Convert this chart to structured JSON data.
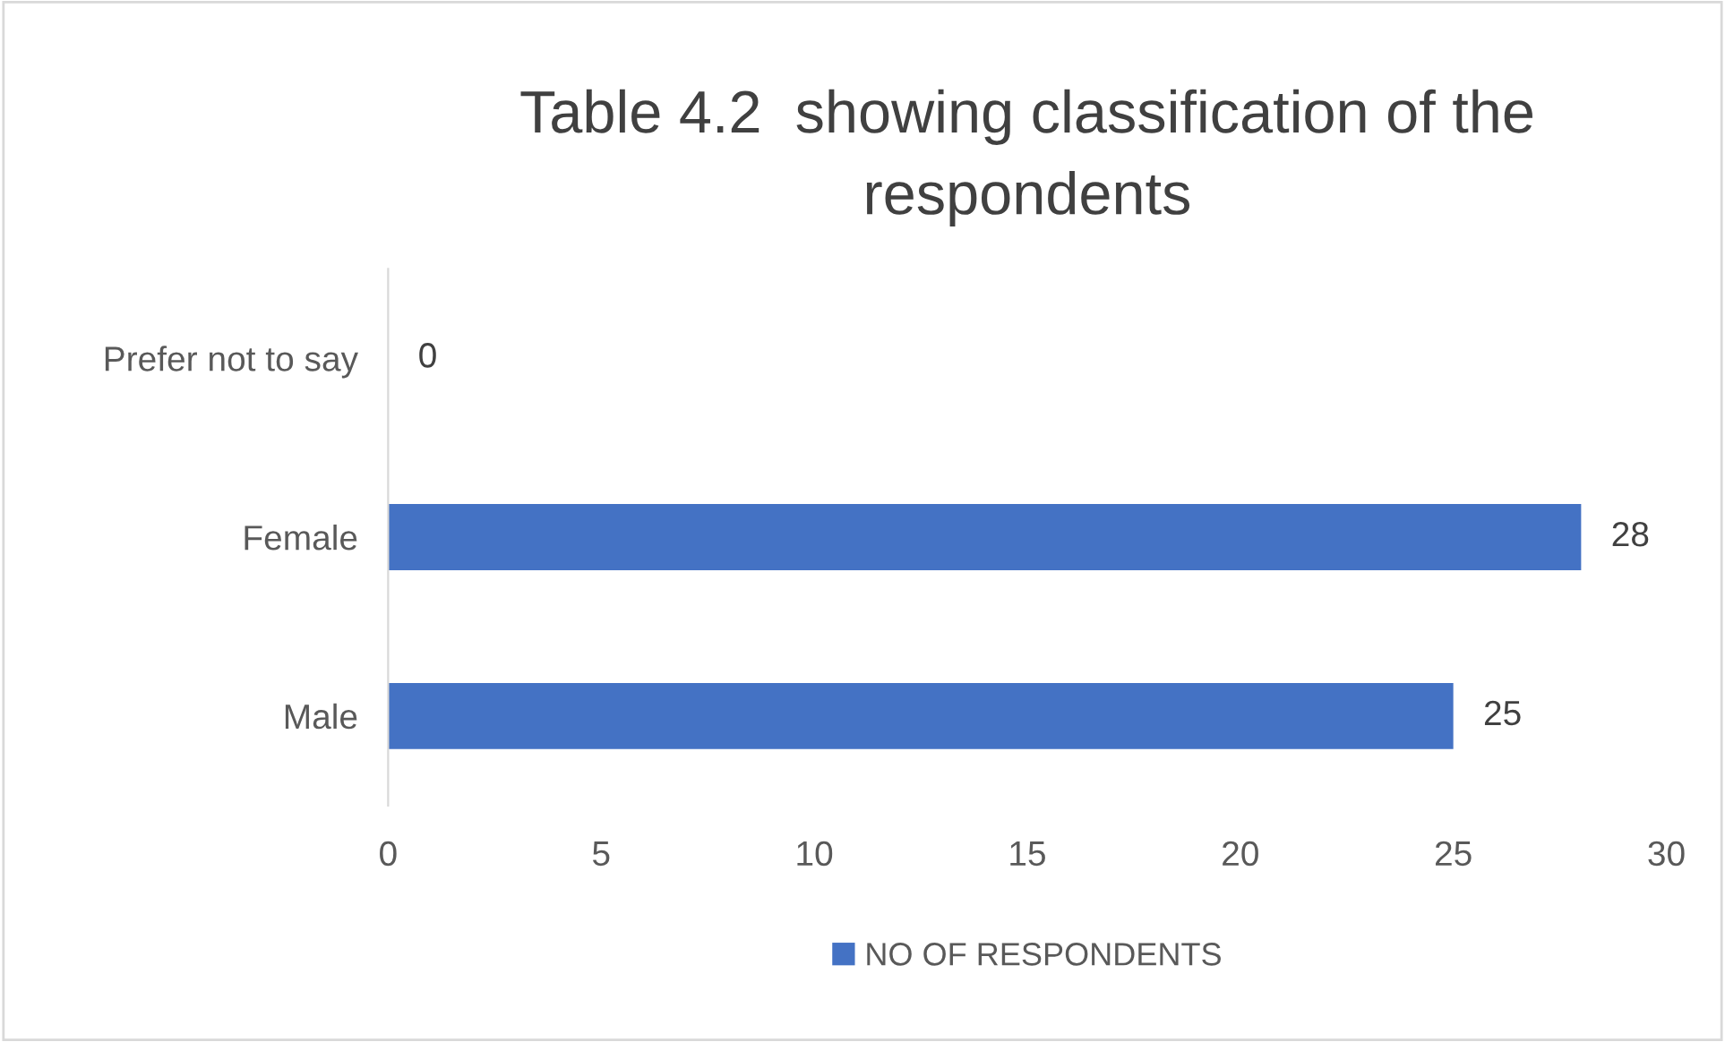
{
  "chart_data": {
    "type": "bar",
    "orientation": "horizontal",
    "title": "Table 4.2  showing classification of the\nrespondents",
    "categories": [
      "Prefer not to say",
      "Female",
      "Male"
    ],
    "series": [
      {
        "name": "NO OF RESPONDENTS",
        "color": "#4472c4",
        "values": [
          0,
          28,
          25
        ]
      }
    ],
    "xlim": [
      0,
      30
    ],
    "xticks": [
      0,
      5,
      10,
      15,
      20,
      25,
      30
    ],
    "data_labels": true,
    "legend": "bottom",
    "grid": false
  }
}
